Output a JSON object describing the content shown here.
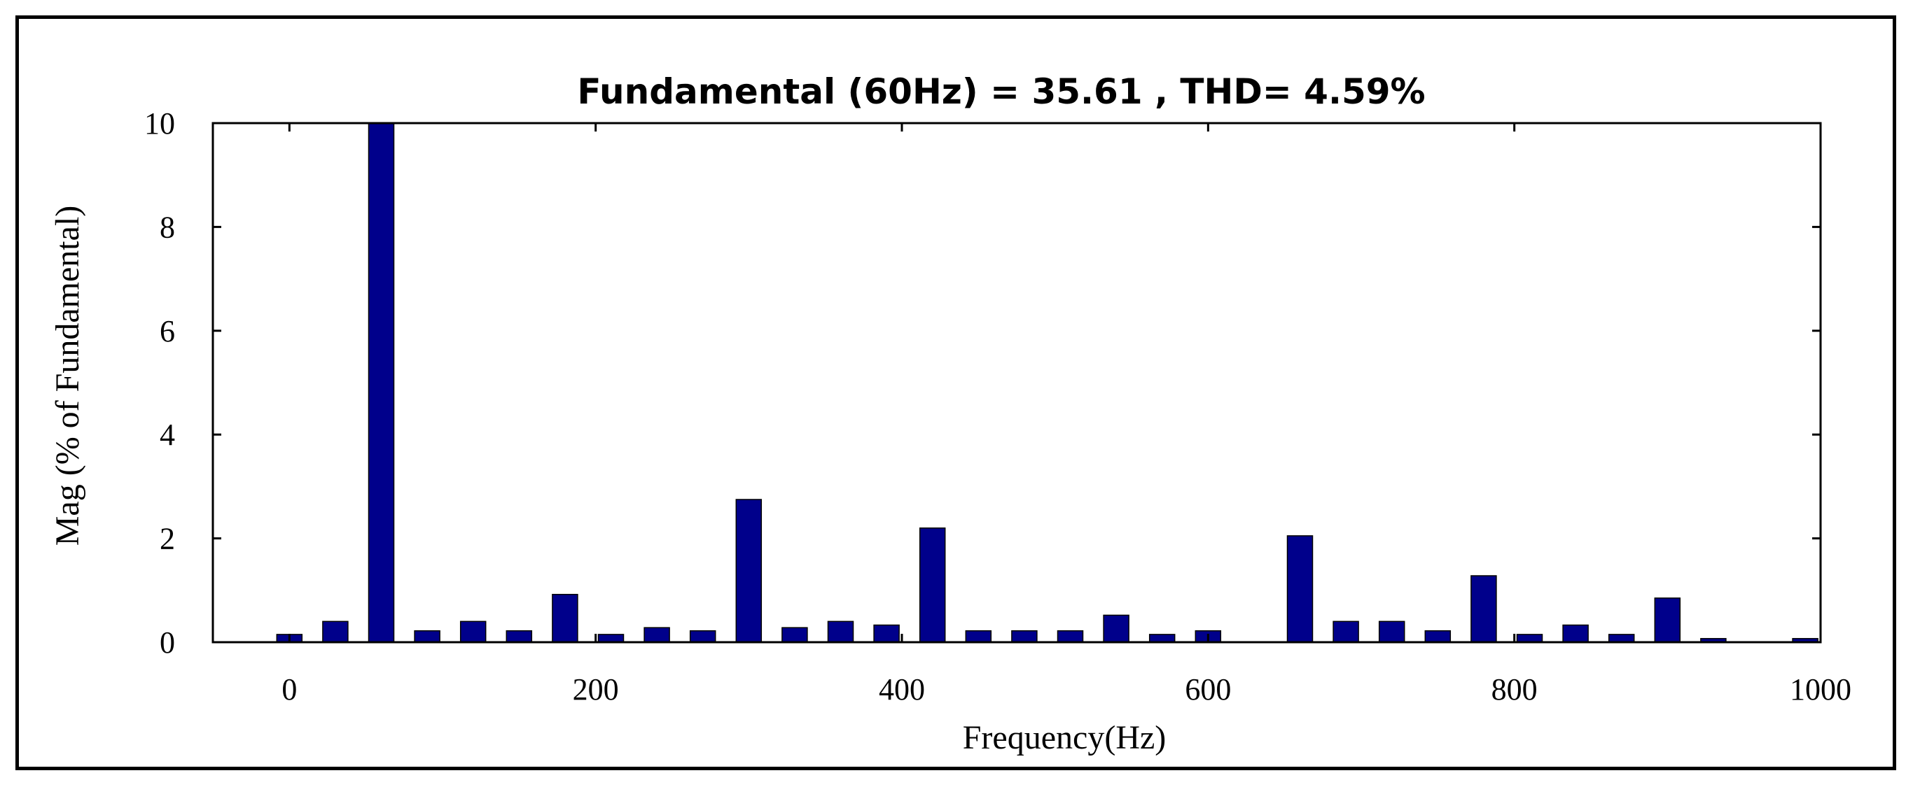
{
  "chart_data": {
    "type": "bar",
    "title": "Fundamental (60Hz) = 35.61 , THD= 4.59%",
    "xlabel": "Frequency(Hz)",
    "ylabel": "Mag (% of Fundamental)",
    "xlim": [
      -50,
      1000
    ],
    "ylim": [
      0,
      10
    ],
    "xticks": [
      0,
      200,
      400,
      600,
      800,
      1000
    ],
    "yticks": [
      0,
      2,
      4,
      6,
      8,
      10
    ],
    "grid": false,
    "bar_color": "#00008b",
    "x": [
      0,
      30,
      60,
      90,
      120,
      150,
      180,
      210,
      240,
      270,
      300,
      330,
      360,
      390,
      420,
      450,
      480,
      510,
      540,
      570,
      600,
      630,
      660,
      690,
      720,
      750,
      780,
      810,
      840,
      870,
      900,
      930,
      960,
      990
    ],
    "values": [
      0.15,
      0.4,
      10,
      0.22,
      0.4,
      0.22,
      0.92,
      0.15,
      0.28,
      0.22,
      2.75,
      0.28,
      0.4,
      0.33,
      2.2,
      0.22,
      0.22,
      0.22,
      0.52,
      0.15,
      0.22,
      0,
      2.05,
      0.4,
      0.4,
      0.22,
      1.28,
      0.15,
      0.33,
      0.15,
      0.85,
      0.07,
      0,
      0.07
    ]
  }
}
